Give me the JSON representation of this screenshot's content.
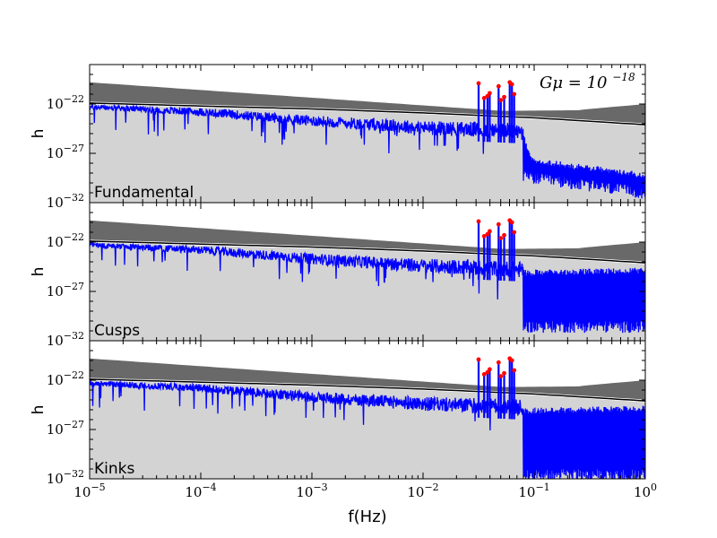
{
  "chart_data": {
    "type": "line",
    "xlabel": "f(Hz)",
    "ylabel": "h",
    "xscale": "log",
    "yscale": "log",
    "xlim": [
      1e-05,
      1
    ],
    "ylim": [
      1e-32,
      1e-18
    ],
    "annotation": "Gμ = 10^-18",
    "panels": [
      {
        "label": "Fundamental",
        "ylabel": "h",
        "high_freq_floor": -30
      },
      {
        "label": "Cusps",
        "ylabel": "h",
        "high_freq_floor": -30
      },
      {
        "label": "Kinks",
        "ylabel": "h",
        "high_freq_floor": -31
      }
    ],
    "series": [
      {
        "color": "#0000ff",
        "points": [
          [
            -5,
            -22.3
          ],
          [
            -4,
            -22.8
          ],
          [
            -3,
            -23.7
          ],
          [
            -2,
            -24.4
          ],
          [
            -1.5,
            -24.6
          ],
          [
            -1.1,
            -24.8
          ]
        ]
      },
      {
        "color": "#000000",
        "points": [
          [
            -5,
            -21.9
          ],
          [
            -4,
            -22.2
          ],
          [
            -3,
            -22.5
          ],
          [
            -2,
            -22.9
          ],
          [
            -1,
            -23.4
          ],
          [
            0,
            -24.1
          ]
        ]
      },
      {
        "color": "#ff0000",
        "points": [
          [
            -1.5,
            -19.9
          ],
          [
            -1.45,
            -21.4
          ],
          [
            -1.42,
            -21.2
          ],
          [
            -1.4,
            -20.9
          ],
          [
            -1.32,
            -20.2
          ],
          [
            -1.3,
            -21.6
          ],
          [
            -1.27,
            -21.3
          ],
          [
            -1.22,
            -19.8
          ],
          [
            -1.2,
            -20.0
          ],
          [
            -1.18,
            -21.0
          ]
        ]
      }
    ],
    "ticks": {
      "x": [
        "10^-5",
        "10^-4",
        "10^-3",
        "10^-2",
        "10^-1",
        "10^0"
      ],
      "y": [
        "10^-32",
        "10^-27",
        "10^-22"
      ]
    },
    "colors": {
      "blue": "#0000ff",
      "light_band": "#d3d3d3",
      "dark_band": "#696969",
      "peak": "#ff0000",
      "line": "#000000"
    }
  },
  "labels": {
    "xlabel": "f(Hz)",
    "annotation_main": "Gμ = 10",
    "annotation_exp": "−18",
    "tick_base": "10",
    "xtick_exps": [
      "−5",
      "−4",
      "−3",
      "−2",
      "−1",
      "0"
    ],
    "ytick_exps": [
      "−32",
      "−27",
      "−22"
    ],
    "panel_labels": [
      "Fundamental",
      "Cusps",
      "Kinks"
    ],
    "ylabel": "h"
  }
}
